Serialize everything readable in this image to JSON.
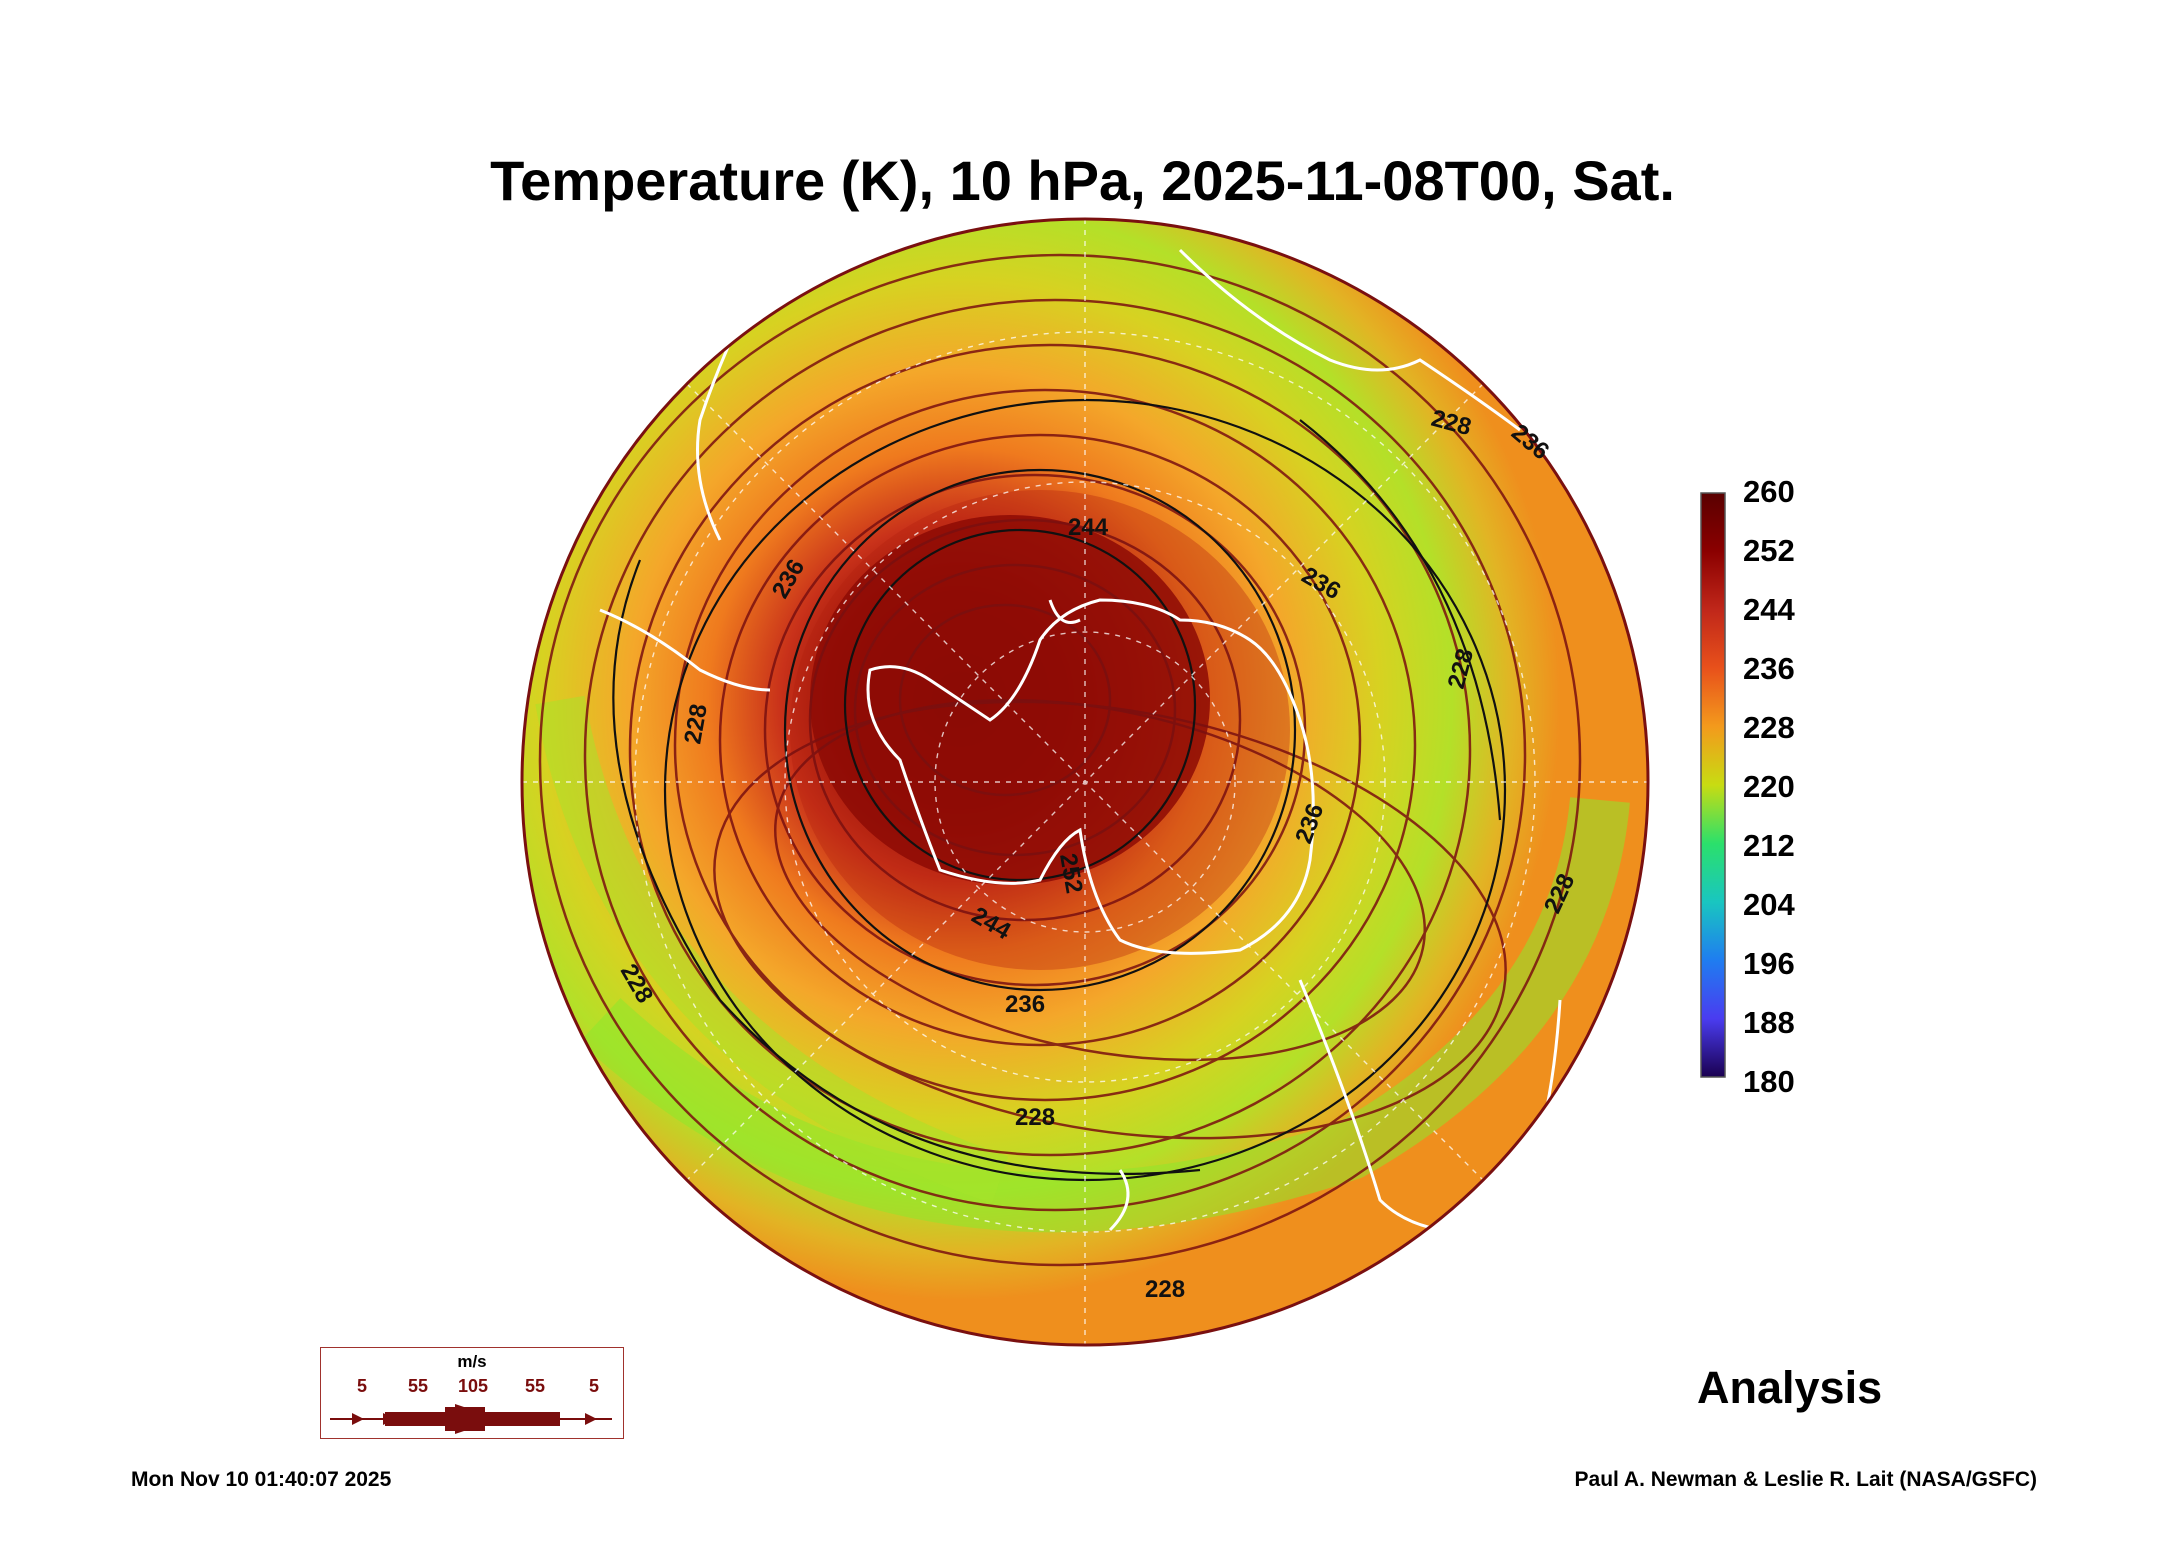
{
  "title": "Temperature (K), 10 hPa, 2025-11-08T00, Sat.",
  "colorbar": {
    "ticks": [
      "260",
      "252",
      "244",
      "236",
      "228",
      "220",
      "212",
      "204",
      "196",
      "188",
      "180"
    ],
    "colors": [
      "#5a0000",
      "#8b0000",
      "#c0271a",
      "#e8511b",
      "#f39a1c",
      "#f2c21f",
      "#c8dc12",
      "#8cea2c",
      "#2be06b",
      "#19c6c0",
      "#1f7df0",
      "#4a3cf0",
      "#3b0aa0",
      "#1a0050"
    ]
  },
  "contour_labels": [
    "244",
    "236",
    "236",
    "236",
    "236",
    "236",
    "228",
    "228",
    "228",
    "228",
    "228",
    "228",
    "228",
    "252",
    "244"
  ],
  "wind_legend": {
    "unit": "m/s",
    "values": [
      "5",
      "55",
      "105",
      "55",
      "5"
    ]
  },
  "annotation": "Analysis",
  "footer": {
    "timestamp": "Mon Nov 10 01:40:07 2025",
    "credit": "Paul A. Newman & Leslie R. Lait (NASA/GSFC)"
  },
  "colors": {
    "warm_core": "#7a0000",
    "ring_orange": "#f08a1e",
    "ring_yellow": "#d9d41e",
    "ring_green": "#9ae82a",
    "streamline": "#7a1010",
    "coast": "#ffffff"
  }
}
